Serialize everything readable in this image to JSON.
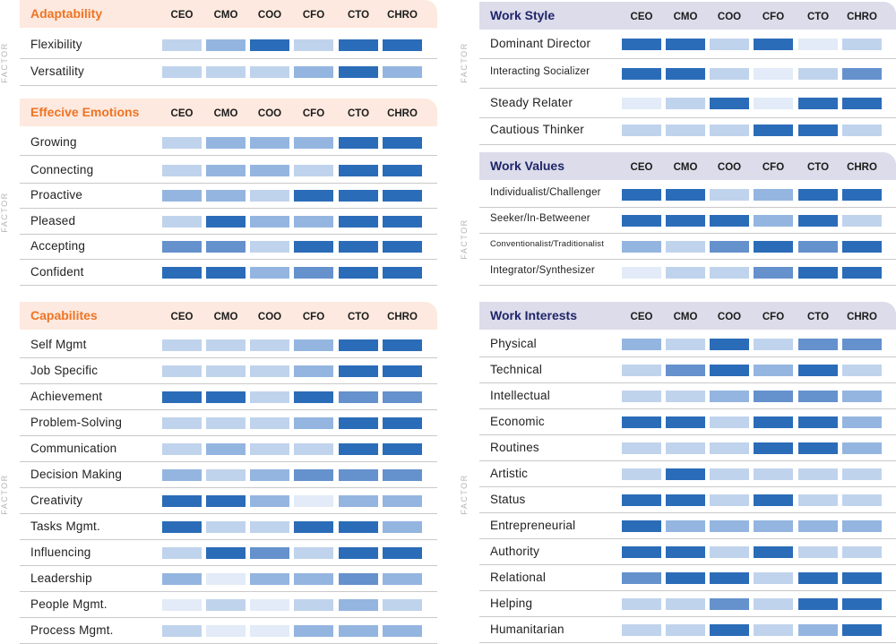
{
  "columns": [
    "CEO",
    "CMO",
    "COO",
    "CFO",
    "CTO",
    "CHRO"
  ],
  "factor_label": "FACTOR",
  "colors": {
    "level_1": "#e2ebf7",
    "level_2": "#c0d3ec",
    "level_3": "#94b5e0",
    "level_4": "#6591cd",
    "level_5": "#2b6cb8",
    "orange_header_bg": "#fde9df",
    "orange_title": "#ee7424",
    "purple_header_bg": "#dcdcea",
    "purple_title": "#1f2569"
  },
  "chart_data": {
    "type": "heatmap",
    "value_scale": [
      1,
      5
    ],
    "sections": [
      {
        "title": "Adaptability",
        "theme": "orange",
        "rows": [
          {
            "label": "Flexibility",
            "values": [
              2,
              3,
              5,
              2,
              5,
              5
            ]
          },
          {
            "label": "Versatility",
            "values": [
              2,
              2,
              2,
              3,
              5,
              3
            ]
          }
        ]
      },
      {
        "title": "Effecive Emotions",
        "theme": "orange",
        "rows": [
          {
            "label": "Growing",
            "values": [
              2,
              3,
              3,
              3,
              5,
              5
            ]
          },
          {
            "label": "Connecting",
            "values": [
              2,
              3,
              3,
              2,
              5,
              5
            ]
          },
          {
            "label": "Proactive",
            "values": [
              3,
              3,
              2,
              5,
              5,
              5
            ]
          },
          {
            "label": "Pleased",
            "values": [
              2,
              5,
              3,
              3,
              5,
              5
            ]
          },
          {
            "label": "Accepting",
            "values": [
              4,
              4,
              2,
              5,
              5,
              5
            ]
          },
          {
            "label": "Confident",
            "values": [
              5,
              5,
              3,
              4,
              5,
              5
            ]
          }
        ]
      },
      {
        "title": "Capabilites",
        "theme": "orange",
        "rows": [
          {
            "label": "Self Mgmt",
            "values": [
              2,
              2,
              2,
              3,
              5,
              5
            ]
          },
          {
            "label": "Job Specific",
            "values": [
              2,
              2,
              2,
              3,
              5,
              5
            ]
          },
          {
            "label": "Achievement",
            "values": [
              5,
              5,
              2,
              5,
              4,
              4
            ]
          },
          {
            "label": "Problem-Solving",
            "values": [
              2,
              2,
              2,
              3,
              5,
              5
            ]
          },
          {
            "label": "Communication",
            "values": [
              2,
              3,
              2,
              2,
              5,
              5
            ]
          },
          {
            "label": "Decision Making",
            "values": [
              3,
              2,
              3,
              4,
              4,
              4
            ]
          },
          {
            "label": "Creativity",
            "values": [
              5,
              5,
              3,
              1,
              3,
              3
            ]
          },
          {
            "label": "Tasks Mgmt.",
            "values": [
              5,
              2,
              2,
              5,
              5,
              3
            ]
          },
          {
            "label": "Influencing",
            "values": [
              2,
              5,
              4,
              2,
              5,
              5
            ]
          },
          {
            "label": "Leadership",
            "values": [
              3,
              1,
              3,
              3,
              4,
              3
            ]
          },
          {
            "label": "People Mgmt.",
            "values": [
              1,
              2,
              1,
              2,
              3,
              2
            ]
          },
          {
            "label": "Process Mgmt.",
            "values": [
              2,
              1,
              1,
              3,
              3,
              3
            ]
          }
        ]
      },
      {
        "title": "Work Style",
        "theme": "purple",
        "rows": [
          {
            "label": "Dominant Director",
            "values": [
              5,
              5,
              2,
              5,
              1,
              2
            ]
          },
          {
            "label": "Interacting Socializer",
            "values": [
              5,
              5,
              2,
              1,
              2,
              4
            ]
          },
          {
            "label": "Steady Relater",
            "values": [
              1,
              2,
              5,
              1,
              5,
              5
            ]
          },
          {
            "label": "Cautious Thinker",
            "values": [
              2,
              2,
              2,
              5,
              5,
              2
            ]
          }
        ]
      },
      {
        "title": "Work Values",
        "theme": "purple",
        "rows": [
          {
            "label": "Individualist/Challenger",
            "values": [
              5,
              5,
              2,
              3,
              5,
              5
            ]
          },
          {
            "label": "Seeker/In-Betweener",
            "values": [
              5,
              5,
              5,
              3,
              5,
              2
            ]
          },
          {
            "label": "Conventionalist/Traditionalist",
            "values": [
              3,
              2,
              4,
              5,
              4,
              5
            ]
          },
          {
            "label": "Integrator/Synthesizer",
            "values": [
              1,
              2,
              2,
              4,
              5,
              5
            ]
          }
        ]
      },
      {
        "title": "Work Interests",
        "theme": "purple",
        "rows": [
          {
            "label": "Physical",
            "values": [
              3,
              2,
              5,
              2,
              4,
              4
            ]
          },
          {
            "label": "Technical",
            "values": [
              2,
              4,
              5,
              3,
              5,
              2
            ]
          },
          {
            "label": "Intellectual",
            "values": [
              2,
              2,
              3,
              4,
              4,
              3
            ]
          },
          {
            "label": "Economic",
            "values": [
              5,
              5,
              2,
              5,
              5,
              3
            ]
          },
          {
            "label": "Routines",
            "values": [
              2,
              2,
              2,
              5,
              5,
              3
            ]
          },
          {
            "label": "Artistic",
            "values": [
              2,
              5,
              2,
              2,
              2,
              2
            ]
          },
          {
            "label": "Status",
            "values": [
              5,
              5,
              2,
              5,
              2,
              2
            ]
          },
          {
            "label": "Entrepreneurial",
            "values": [
              5,
              3,
              3,
              3,
              3,
              3
            ]
          },
          {
            "label": "Authority",
            "values": [
              5,
              5,
              2,
              5,
              2,
              2
            ]
          },
          {
            "label": "Relational",
            "values": [
              4,
              5,
              5,
              2,
              5,
              5
            ]
          },
          {
            "label": "Helping",
            "values": [
              2,
              2,
              4,
              2,
              5,
              5
            ]
          },
          {
            "label": "Humanitarian",
            "values": [
              2,
              2,
              5,
              2,
              3,
              5
            ]
          }
        ]
      }
    ]
  }
}
